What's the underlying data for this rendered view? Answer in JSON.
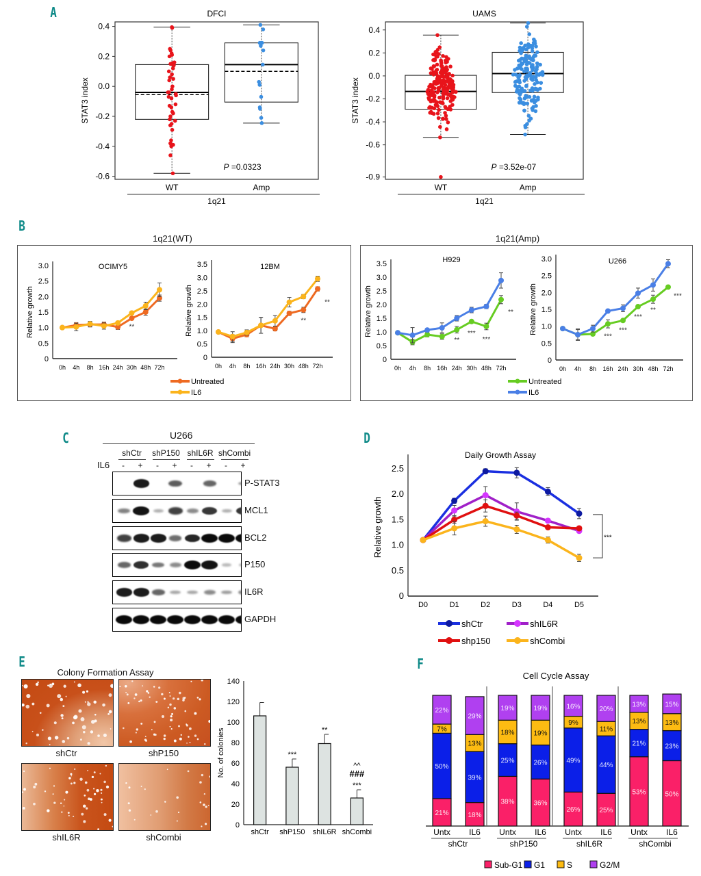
{
  "panels": {
    "A": "A",
    "B": "B",
    "C": "C",
    "D": "D",
    "E": "E",
    "F": "F"
  },
  "chart_data": [
    {
      "id": "A-DFCI",
      "type": "box",
      "title": "DFCI",
      "ylabel": "STAT3 index",
      "xlabel": "1q21",
      "categories": [
        "WT",
        "Amp"
      ],
      "yticks": [
        "0.4",
        "0.2",
        "0.0",
        "-0.2",
        "-0.4",
        "-0.6"
      ],
      "ylim": [
        -0.62,
        0.43
      ],
      "annotation": "=0.0323",
      "annotation_p": "P",
      "boxes": [
        {
          "name": "WT",
          "color": "#e8141b",
          "q1": -0.22,
          "median": -0.04,
          "mean": -0.055,
          "q3": 0.145,
          "whisker_low": -0.58,
          "whisker_high": 0.395,
          "points": [
            0.395,
            0.39,
            0.25,
            0.24,
            0.22,
            0.21,
            0.2,
            0.16,
            0.155,
            0.15,
            0.15,
            0.14,
            0.12,
            0.1,
            0.08,
            0.06,
            0.05,
            0.04,
            0.0,
            -0.02,
            -0.04,
            -0.04,
            -0.05,
            -0.06,
            -0.07,
            -0.08,
            -0.12,
            -0.13,
            -0.14,
            -0.17,
            -0.18,
            -0.2,
            -0.22,
            -0.23,
            -0.25,
            -0.26,
            -0.29,
            -0.36,
            -0.38,
            -0.39,
            -0.39,
            -0.4,
            -0.46,
            -0.58
          ]
        },
        {
          "name": "Amp",
          "color": "#3b8ee0",
          "q1": -0.105,
          "median": 0.145,
          "mean": 0.1,
          "q3": 0.29,
          "whisker_low": -0.245,
          "whisker_high": 0.41,
          "points": [
            0.41,
            0.38,
            0.29,
            0.29,
            0.29,
            0.27,
            0.24,
            0.145,
            0.03,
            0.01,
            -0.07,
            -0.15,
            -0.14,
            -0.21,
            -0.245
          ]
        }
      ]
    },
    {
      "id": "A-UAMS",
      "type": "box",
      "title": "UAMS",
      "ylabel": "STAT3 index",
      "xlabel": "1q21",
      "categories": [
        "WT",
        "Amp"
      ],
      "yticks": [
        "0.4",
        "0.2",
        "0.0",
        "-0.2",
        "-0.4",
        "-0.6",
        "-0.9"
      ],
      "ylim": [
        -0.9,
        0.47
      ],
      "annotation": "=3.52e-07",
      "annotation_p": "P",
      "boxes": [
        {
          "name": "WT",
          "color": "#e8141b",
          "q1": -0.29,
          "median": -0.135,
          "q3": 0.005,
          "whisker_low": -0.535,
          "whisker_high": 0.355,
          "outlier": -0.88,
          "n_points": 190
        },
        {
          "name": "Amp",
          "color": "#3b8ee0",
          "q1": -0.145,
          "median": 0.02,
          "q3": 0.205,
          "whisker_low": -0.51,
          "whisker_high": 0.46,
          "n_points": 170
        }
      ]
    },
    {
      "id": "B-OCIMY5",
      "type": "line",
      "group_title": "1q21(WT)",
      "title": "OCIMY5",
      "ylabel": "Relative growth",
      "x": [
        "0h",
        "4h",
        "8h",
        "16h",
        "24h",
        "30h",
        "48h",
        "72h"
      ],
      "yticks": [
        "0",
        "0.5",
        "1.0",
        "1.5",
        "2.0",
        "2.5",
        "3.0"
      ],
      "ylim": [
        0,
        3.0
      ],
      "series": [
        {
          "name": "Untreated",
          "color": "#ee6a22",
          "values": [
            1.0,
            1.08,
            1.1,
            1.1,
            1.02,
            1.3,
            1.5,
            1.95
          ],
          "err": [
            0.02,
            0.08,
            0.08,
            0.08,
            0.08,
            0.03,
            0.1,
            0.1
          ]
        },
        {
          "name": "IL6",
          "color": "#fbb41c",
          "values": [
            1.0,
            1.02,
            1.12,
            1.05,
            1.15,
            1.47,
            1.7,
            2.22
          ],
          "err": [
            0.02,
            0.12,
            0.08,
            0.1,
            0.05,
            0.05,
            0.12,
            0.22
          ]
        }
      ],
      "annotations": [
        {
          "x": "30h",
          "text": "**",
          "y": 1.05
        }
      ]
    },
    {
      "id": "B-12BM",
      "type": "line",
      "title": "12BM",
      "ylabel": "Relative growth",
      "x": [
        "0h",
        "4h",
        "8h",
        "16h",
        "24h",
        "30h",
        "48h",
        "72h"
      ],
      "yticks": [
        "0",
        "0.5",
        "1.0",
        "1.5",
        "2.0",
        "2.5",
        "3.0",
        "3.5"
      ],
      "ylim": [
        0,
        3.5
      ],
      "series": [
        {
          "name": "Untreated",
          "color": "#ee6a22",
          "values": [
            0.95,
            0.7,
            0.85,
            1.2,
            1.07,
            1.65,
            1.78,
            2.57
          ],
          "err": [
            0.02,
            0.15,
            0.08,
            0.3,
            0.08,
            0.08,
            0.1,
            0.08
          ]
        },
        {
          "name": "IL6",
          "color": "#fbb41c",
          "values": [
            0.95,
            0.78,
            0.93,
            1.2,
            1.37,
            2.07,
            2.28,
            2.95
          ],
          "err": [
            0.02,
            0.18,
            0.1,
            0.3,
            0.2,
            0.18,
            0.08,
            0.1
          ]
        }
      ],
      "annotations": [
        {
          "x": "48h",
          "text": "**",
          "y": 1.4
        },
        {
          "x": "72h",
          "text": "**",
          "y": 2.1,
          "offset": "right"
        }
      ]
    },
    {
      "id": "B-H929",
      "type": "line",
      "group_title": "1q21(Amp)",
      "title": "H929",
      "ylabel": "Relative growth",
      "x": [
        "0h",
        "4h",
        "8h",
        "16h",
        "24h",
        "30h",
        "48h",
        "72h"
      ],
      "yticks": [
        "0",
        "0.5",
        "1.0",
        "1.5",
        "2.0",
        "2.5",
        "3.0",
        "3.5"
      ],
      "ylim": [
        0,
        3.5
      ],
      "series": [
        {
          "name": "Untreated",
          "color": "#66cc22",
          "values": [
            0.97,
            0.63,
            0.9,
            0.83,
            1.08,
            1.38,
            1.2,
            2.18
          ],
          "err": [
            0.02,
            0.1,
            0.08,
            0.1,
            0.12,
            0.04,
            0.12,
            0.15
          ]
        },
        {
          "name": "IL6",
          "color": "#4a7fe6",
          "values": [
            0.97,
            0.88,
            1.07,
            1.15,
            1.5,
            1.8,
            1.93,
            2.88
          ],
          "err": [
            0.02,
            0.28,
            0.05,
            0.18,
            0.1,
            0.1,
            0.08,
            0.28
          ]
        }
      ],
      "annotations": [
        {
          "x": "24h",
          "text": "**",
          "y": 0.72
        },
        {
          "x": "30h",
          "text": "***",
          "y": 0.98
        },
        {
          "x": "48h",
          "text": "***",
          "y": 0.75
        },
        {
          "x": "72h",
          "text": "**",
          "y": 1.75,
          "offset": "right"
        }
      ]
    },
    {
      "id": "B-U266",
      "type": "line",
      "title": "U266",
      "ylabel": "Relative growth",
      "x": [
        "0h",
        "4h",
        "8h",
        "16h",
        "24h",
        "30h",
        "48h",
        "72h"
      ],
      "yticks": [
        "0",
        "0.5",
        "1.0",
        "1.5",
        "2.0",
        "2.5",
        "3.0"
      ],
      "ylim": [
        0,
        3.0
      ],
      "series": [
        {
          "name": "Untreated",
          "color": "#66cc22",
          "values": [
            0.93,
            0.75,
            0.77,
            1.07,
            1.17,
            1.58,
            1.8,
            2.16
          ],
          "err": [
            0.02,
            0.15,
            0.03,
            0.12,
            0.03,
            0.05,
            0.12,
            0.05
          ]
        },
        {
          "name": "IL6",
          "color": "#4a7fe6",
          "values": [
            0.93,
            0.75,
            0.93,
            1.45,
            1.53,
            1.98,
            2.22,
            2.85
          ],
          "err": [
            0.02,
            0.17,
            0.1,
            0.05,
            0.1,
            0.15,
            0.18,
            0.12
          ]
        }
      ],
      "annotations": [
        {
          "x": "16h",
          "text": "***",
          "y": 0.72
        },
        {
          "x": "24h",
          "text": "***",
          "y": 0.9
        },
        {
          "x": "30h",
          "text": "***",
          "y": 1.3
        },
        {
          "x": "48h",
          "text": "**",
          "y": 1.5
        },
        {
          "x": "72h",
          "text": "***",
          "y": 1.92,
          "offset": "right"
        }
      ]
    },
    {
      "id": "D-daily-growth",
      "type": "line",
      "title": "Daily Growth Assay",
      "ylabel": "Relative growth",
      "x": [
        "D0",
        "D1",
        "D2",
        "D3",
        "D4",
        "D5"
      ],
      "yticks": [
        "0",
        "0.5",
        "1.0",
        "1.5",
        "2.0",
        "2.5"
      ],
      "ylim": [
        0,
        2.7
      ],
      "series": [
        {
          "name": "shCtr",
          "color": "#1a2fe0",
          "marker": "#0d1aa0",
          "values": [
            1.1,
            1.87,
            2.45,
            2.42,
            2.05,
            1.62
          ],
          "err": [
            0.02,
            0.05,
            0.05,
            0.1,
            0.08,
            0.1
          ]
        },
        {
          "name": "shIL6R",
          "color": "#a020c8",
          "marker": "#d535ff",
          "values": [
            1.1,
            1.68,
            1.98,
            1.66,
            1.48,
            1.28
          ],
          "err": [
            0.02,
            0.1,
            0.17,
            0.17,
            0.03,
            0.04
          ]
        },
        {
          "name": "shp150",
          "color": "#e01010",
          "marker": "#e01010",
          "values": [
            1.1,
            1.5,
            1.77,
            1.58,
            1.35,
            1.33
          ],
          "err": [
            0.02,
            0.07,
            0.12,
            0.07,
            0.03,
            0.03
          ]
        },
        {
          "name": "shCombi",
          "color": "#fbb41c",
          "marker": "#fbb41c",
          "values": [
            1.1,
            1.33,
            1.47,
            1.31,
            1.1,
            0.75
          ],
          "err": [
            0.02,
            0.13,
            0.1,
            0.08,
            0.06,
            0.07
          ]
        }
      ],
      "bracket": {
        "from": 1.6,
        "to": 0.75,
        "text": "***"
      }
    },
    {
      "id": "E-colonies",
      "type": "bar",
      "ylabel": "No. of colonies",
      "categories": [
        "shCtr",
        "shP150",
        "shIL6R",
        "shCombi"
      ],
      "values": [
        106,
        56,
        79,
        26
      ],
      "err": [
        13,
        8,
        9,
        8
      ],
      "yticks": [
        "0",
        "20",
        "40",
        "60",
        "80",
        "100",
        "120",
        "140"
      ],
      "ylim": [
        0,
        140
      ],
      "bar_color": "#dde3e1",
      "annotations": [
        [
          ""
        ],
        [
          "***"
        ],
        [
          "**"
        ],
        [
          "***",
          "###",
          "^^"
        ]
      ]
    },
    {
      "id": "F-cell-cycle",
      "type": "stacked-bar",
      "title": "Cell Cycle Assay",
      "legend": [
        {
          "name": "Sub-G1",
          "color": "#fa2068"
        },
        {
          "name": "G1",
          "color": "#0b1fe8"
        },
        {
          "name": "S",
          "color": "#fdbb12"
        },
        {
          "name": "G2/M",
          "color": "#b040f0"
        }
      ],
      "groups": [
        {
          "name": "shCtr",
          "bars": [
            {
              "label": "Untx",
              "values": [
                21,
                50,
                7,
                22
              ]
            },
            {
              "label": "IL6",
              "values": [
                18,
                39,
                13,
                29
              ]
            }
          ]
        },
        {
          "name": "shP150",
          "bars": [
            {
              "label": "Untx",
              "values": [
                38,
                25,
                18,
                19
              ]
            },
            {
              "label": "IL6",
              "values": [
                36,
                26,
                19,
                19
              ]
            }
          ]
        },
        {
          "name": "shIL6R",
          "bars": [
            {
              "label": "Untx",
              "values": [
                26,
                49,
                9,
                16
              ]
            },
            {
              "label": "IL6",
              "values": [
                25,
                44,
                11,
                20
              ]
            }
          ]
        },
        {
          "name": "shCombi",
          "bars": [
            {
              "label": "Untx",
              "values": [
                53,
                21,
                13,
                13
              ]
            },
            {
              "label": "IL6",
              "values": [
                50,
                23,
                13,
                15
              ]
            }
          ]
        }
      ]
    }
  ],
  "panelB": {
    "wt_title": "1q21(WT)",
    "amp_title": "1q21(Amp)",
    "wt_legend": [
      {
        "name": "Untreated",
        "color": "#ee6a22"
      },
      {
        "name": "IL6",
        "color": "#fbb41c"
      }
    ],
    "amp_legend": [
      {
        "name": "Untreated",
        "color": "#66cc22"
      },
      {
        "name": "IL6",
        "color": "#4a7fe6"
      }
    ]
  },
  "panelC": {
    "cell_line": "U266",
    "treatment_label": "IL6",
    "groups": [
      "shCtr",
      "shP150",
      "shIL6R",
      "shCombi"
    ],
    "lanes": [
      "-",
      "+",
      "-",
      "+",
      "-",
      "+",
      "-",
      "+"
    ],
    "blots": [
      {
        "label": "P-STAT3",
        "intensity": [
          0,
          0.9,
          0,
          0.55,
          0,
          0.5,
          0,
          0.2
        ]
      },
      {
        "label": "MCL1",
        "intensity": [
          0.35,
          0.95,
          0.1,
          0.7,
          0.3,
          0.75,
          0.1,
          0.75
        ]
      },
      {
        "label": "BCL2",
        "intensity": [
          0.7,
          0.9,
          0.9,
          0.45,
          0.85,
          1.0,
          1.0,
          1.0
        ]
      },
      {
        "label": "P150",
        "intensity": [
          0.5,
          0.8,
          0.4,
          0.3,
          1.0,
          0.95,
          0.05,
          0.05
        ]
      },
      {
        "label": "IL6R",
        "intensity": [
          0.9,
          0.9,
          0.5,
          0.15,
          0.15,
          0.3,
          0.2,
          0.3
        ]
      },
      {
        "label": "GAPDH",
        "intensity": [
          1,
          1,
          1,
          1,
          1,
          1,
          1,
          1
        ]
      }
    ]
  },
  "panelE": {
    "title": "Colony Formation Assay",
    "photos": [
      "shCtr",
      "shP150",
      "shIL6R",
      "shCombi"
    ]
  }
}
